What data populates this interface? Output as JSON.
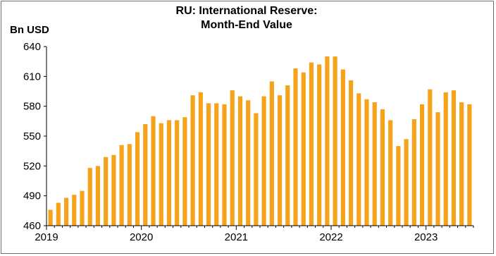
{
  "chart_data": {
    "type": "bar",
    "title_line1": "RU: International Reserve:",
    "title_line2": "Month-End Value",
    "ylabel": "Bn USD",
    "xlabel": "",
    "ylim": [
      460,
      640
    ],
    "yticks": [
      460,
      490,
      520,
      550,
      580,
      610,
      640
    ],
    "xticks": [
      "2019",
      "2020",
      "2021",
      "2022",
      "2023"
    ],
    "bar_color": "#f5a31a",
    "categories": [
      "2019-01",
      "2019-02",
      "2019-03",
      "2019-04",
      "2019-05",
      "2019-06",
      "2019-07",
      "2019-08",
      "2019-09",
      "2019-10",
      "2019-11",
      "2019-12",
      "2020-01",
      "2020-02",
      "2020-03",
      "2020-04",
      "2020-05",
      "2020-06",
      "2020-07",
      "2020-08",
      "2020-09",
      "2020-10",
      "2020-11",
      "2020-12",
      "2021-01",
      "2021-02",
      "2021-03",
      "2021-04",
      "2021-05",
      "2021-06",
      "2021-07",
      "2021-08",
      "2021-09",
      "2021-10",
      "2021-11",
      "2021-12",
      "2022-01",
      "2022-02",
      "2022-03",
      "2022-04",
      "2022-05",
      "2022-06",
      "2022-07",
      "2022-08",
      "2022-09",
      "2022-10",
      "2022-11",
      "2022-12",
      "2023-01",
      "2023-02",
      "2023-03",
      "2023-04",
      "2023-05",
      "2023-06"
    ],
    "values": [
      476,
      483,
      488,
      491,
      495,
      518,
      520,
      529,
      531,
      541,
      542,
      554,
      562,
      570,
      563,
      566,
      566,
      569,
      591,
      594,
      583,
      583,
      582,
      596,
      590,
      586,
      573,
      590,
      605,
      591,
      601,
      618,
      614,
      624,
      622,
      630,
      630,
      617,
      606,
      593,
      587,
      584,
      577,
      566,
      540,
      547,
      567,
      582,
      597,
      574,
      594,
      596,
      584,
      582
    ]
  }
}
